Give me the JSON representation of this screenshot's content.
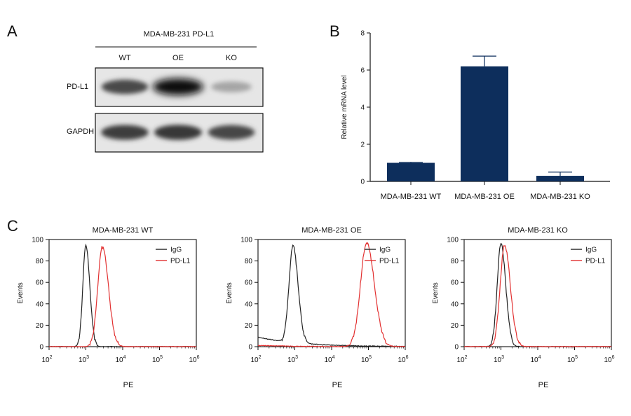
{
  "panels": {
    "a": "A",
    "b": "B",
    "c": "C"
  },
  "western_blot": {
    "cell_line": "MDA-MB-231 PD-L1",
    "lanes": [
      "WT",
      "OE",
      "KO"
    ],
    "rows": [
      "PD-L1",
      "GAPDH"
    ],
    "band_intensity": {
      "PD-L1": [
        0.72,
        1.0,
        0.28
      ],
      "GAPDH": [
        0.78,
        0.8,
        0.74
      ]
    }
  },
  "chart_data": [
    {
      "type": "bar",
      "panel": "B",
      "categories": [
        "MDA-MB-231 WT",
        "MDA-MB-231 OE",
        "MDA-MB-231 KO"
      ],
      "values": [
        1.0,
        6.2,
        0.3
      ],
      "errors": [
        0.03,
        0.55,
        0.2
      ],
      "title": "",
      "xlabel": "",
      "ylabel": "Relative mRNA level",
      "ylim": [
        0,
        8
      ],
      "yticks": [
        "0",
        "2",
        "4",
        "6",
        "8"
      ],
      "colors": {
        "bar": "#0d2e5c",
        "axis": "#111111"
      }
    },
    {
      "type": "line",
      "panel": "C",
      "title": "MDA-MB-231 WT",
      "xlabel": "PE",
      "ylabel": "Events",
      "xscale": "log",
      "xlim_log10": [
        2,
        6
      ],
      "ylim": [
        0,
        100
      ],
      "yticks": [
        "0",
        "20",
        "40",
        "60",
        "80",
        "100"
      ],
      "xticks": [
        {
          "base": "10",
          "exp": "2"
        },
        {
          "base": "10",
          "exp": "3"
        },
        {
          "base": "10",
          "exp": "4"
        },
        {
          "base": "10",
          "exp": "5"
        },
        {
          "base": "10",
          "exp": "6"
        }
      ],
      "legend": [
        "IgG",
        "PD-L1"
      ],
      "legend_position": "top-right",
      "series": [
        {
          "name": "IgG",
          "color": "#222222",
          "peak_log10": 3.0,
          "peak_value": 95,
          "width": 0.13,
          "floor": 0
        },
        {
          "name": "PD-L1",
          "color": "#e23030",
          "peak_log10": 3.45,
          "peak_value": 93,
          "width": 0.2,
          "floor": 0
        }
      ]
    },
    {
      "type": "line",
      "panel": "C",
      "title": "MDA-MB-231 OE",
      "xlabel": "PE",
      "ylabel": "Events",
      "xscale": "log",
      "xlim_log10": [
        2,
        6
      ],
      "ylim": [
        0,
        100
      ],
      "yticks": [
        "0",
        "20",
        "40",
        "60",
        "80",
        "100"
      ],
      "xticks": [
        {
          "base": "10",
          "exp": "2"
        },
        {
          "base": "10",
          "exp": "3"
        },
        {
          "base": "10",
          "exp": "4"
        },
        {
          "base": "10",
          "exp": "5"
        },
        {
          "base": "10",
          "exp": "6"
        }
      ],
      "legend": [
        "IgG",
        "PD-L1"
      ],
      "legend_position": "top-right",
      "series": [
        {
          "name": "IgG",
          "color": "#222222",
          "peak_log10": 2.95,
          "peak_value": 90,
          "width": 0.17,
          "floor": 9
        },
        {
          "name": "PD-L1",
          "color": "#e23030",
          "peak_log10": 4.95,
          "peak_value": 97,
          "width": 0.26,
          "floor": 1
        }
      ]
    },
    {
      "type": "line",
      "panel": "C",
      "title": "MDA-MB-231 KO",
      "xlabel": "PE",
      "ylabel": "Events",
      "xscale": "log",
      "xlim_log10": [
        2,
        6
      ],
      "ylim": [
        0,
        100
      ],
      "yticks": [
        "0",
        "20",
        "40",
        "60",
        "80",
        "100"
      ],
      "xticks": [
        {
          "base": "10",
          "exp": "2"
        },
        {
          "base": "10",
          "exp": "3"
        },
        {
          "base": "10",
          "exp": "4"
        },
        {
          "base": "10",
          "exp": "5"
        },
        {
          "base": "10",
          "exp": "6"
        }
      ],
      "legend": [
        "IgG",
        "PD-L1"
      ],
      "legend_position": "top-right",
      "series": [
        {
          "name": "IgG",
          "color": "#222222",
          "peak_log10": 3.0,
          "peak_value": 96,
          "width": 0.16,
          "floor": 0
        },
        {
          "name": "PD-L1",
          "color": "#e23030",
          "peak_log10": 3.1,
          "peak_value": 95,
          "width": 0.19,
          "floor": 0
        }
      ]
    }
  ]
}
